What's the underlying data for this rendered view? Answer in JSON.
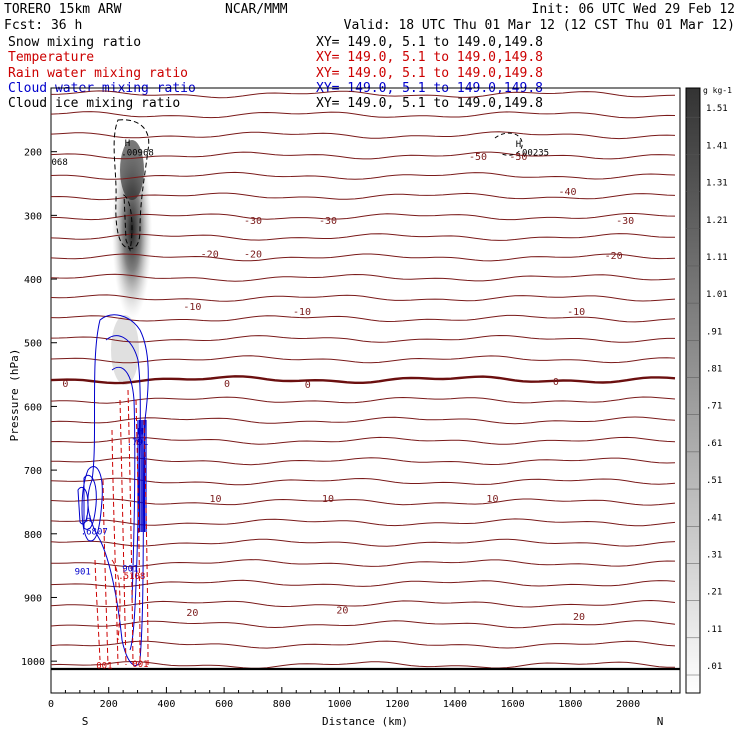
{
  "header": {
    "model": "TORERO  15km ARW",
    "org": "NCAR/MMM",
    "init": "Init: 06 UTC Wed 29 Feb 12",
    "fcst": "Fcst:   36 h",
    "valid": "Valid: 18 UTC Thu 01 Mar 12 (12 CST Thu 01 Mar 12)"
  },
  "fields": [
    {
      "name": "Snow mixing ratio",
      "xy": "",
      "color": "#000000"
    },
    {
      "name": "Temperature",
      "xy": "XY= 149.0,  5.1 to 149.0,149.8",
      "color": "#cc0000"
    },
    {
      "name": "Rain water mixing ratio",
      "xy": "XY= 149.0,  5.1 to 149.0,149.8",
      "color": "#cc0000"
    },
    {
      "name": "Cloud water mixing ratio",
      "xy": "XY= 149.0,  5.1 to 149.0,149.8",
      "color": "#0000cc"
    },
    {
      "name": "Cloud ice mixing ratio",
      "xy": "XY= 149.0,  5.1 to 149.0,149.8",
      "color": "#000000"
    }
  ],
  "snow_xy": "XY= 149.0,  5.1 to 149.0,149.8",
  "chart_data": {
    "type": "cross-section contour",
    "xlabel": "Distance (km)",
    "ylabel": "Pressure (hPa)",
    "xlim": [
      0,
      2180
    ],
    "ylim": [
      1050,
      100
    ],
    "xticks": [
      0,
      200,
      400,
      600,
      800,
      1000,
      1200,
      1400,
      1600,
      1800,
      2000
    ],
    "yticks": [
      200,
      300,
      400,
      500,
      600,
      700,
      800,
      900,
      1000
    ],
    "left_end": "S",
    "right_end": "N",
    "colorbar": {
      "units": "g kg-1",
      "labels": [
        ".01",
        ".11",
        ".21",
        ".31",
        ".41",
        ".51",
        ".61",
        ".71",
        ".81",
        ".91",
        "1.01",
        "1.11",
        "1.21",
        "1.31",
        "1.41",
        "1.51"
      ]
    },
    "temperature_labels": [
      {
        "text": "-50",
        "x": 1480,
        "p": 207
      },
      {
        "text": "-50",
        "x": 1620,
        "p": 207
      },
      {
        "text": "-40",
        "x": 1790,
        "p": 262
      },
      {
        "text": "-30",
        "x": 700,
        "p": 307
      },
      {
        "text": "-30",
        "x": 960,
        "p": 307
      },
      {
        "text": "-30",
        "x": 1990,
        "p": 307
      },
      {
        "text": "-20",
        "x": 550,
        "p": 360
      },
      {
        "text": "-20",
        "x": 700,
        "p": 360
      },
      {
        "text": "-20",
        "x": 1950,
        "p": 362
      },
      {
        "text": "-10",
        "x": 490,
        "p": 442
      },
      {
        "text": "-10",
        "x": 870,
        "p": 450
      },
      {
        "text": "-10",
        "x": 1820,
        "p": 450
      },
      {
        "text": "0",
        "x": 50,
        "p": 563
      },
      {
        "text": "0",
        "x": 610,
        "p": 563
      },
      {
        "text": "0",
        "x": 890,
        "p": 565
      },
      {
        "text": "0",
        "x": 1750,
        "p": 560
      },
      {
        "text": "10",
        "x": 570,
        "p": 744
      },
      {
        "text": "10",
        "x": 960,
        "p": 744
      },
      {
        "text": "10",
        "x": 1530,
        "p": 744
      },
      {
        "text": "20",
        "x": 490,
        "p": 923
      },
      {
        "text": "20",
        "x": 1010,
        "p": 919
      },
      {
        "text": "20",
        "x": 1830,
        "p": 929
      }
    ],
    "extrema_labels": [
      {
        "text": "H",
        "x": 265,
        "p": 185,
        "color": "#000000"
      },
      {
        "text": ".00968",
        "x": 300,
        "p": 200,
        "color": "#000000"
      },
      {
        "text": "068",
        "x": 30,
        "p": 215,
        "color": "#000000"
      },
      {
        "text": "H",
        "x": 1620,
        "p": 186,
        "color": "#000000"
      },
      {
        "text": ".00235",
        "x": 1670,
        "p": 200,
        "color": "#000000"
      },
      {
        "text": "H",
        "x": 310,
        "p": 638,
        "color": "#0000cc"
      },
      {
        "text": ".791",
        "x": 300,
        "p": 654,
        "color": "#0000cc"
      },
      {
        "text": "H",
        "x": 130,
        "p": 775,
        "color": "#0000cc"
      },
      {
        "text": ".6807",
        "x": 150,
        "p": 795,
        "color": "#0000cc"
      },
      {
        "text": "901",
        "x": 110,
        "p": 858,
        "color": "#0000cc"
      },
      {
        "text": "901",
        "x": 275,
        "p": 853,
        "color": "#0000cc"
      },
      {
        "text": ".5108",
        "x": 280,
        "p": 865,
        "color": "#cc0000"
      },
      {
        "text": "001",
        "x": 185,
        "p": 1005,
        "color": "#cc0000"
      },
      {
        "text": "001",
        "x": 310,
        "p": 1003,
        "color": "#cc0000"
      }
    ]
  }
}
